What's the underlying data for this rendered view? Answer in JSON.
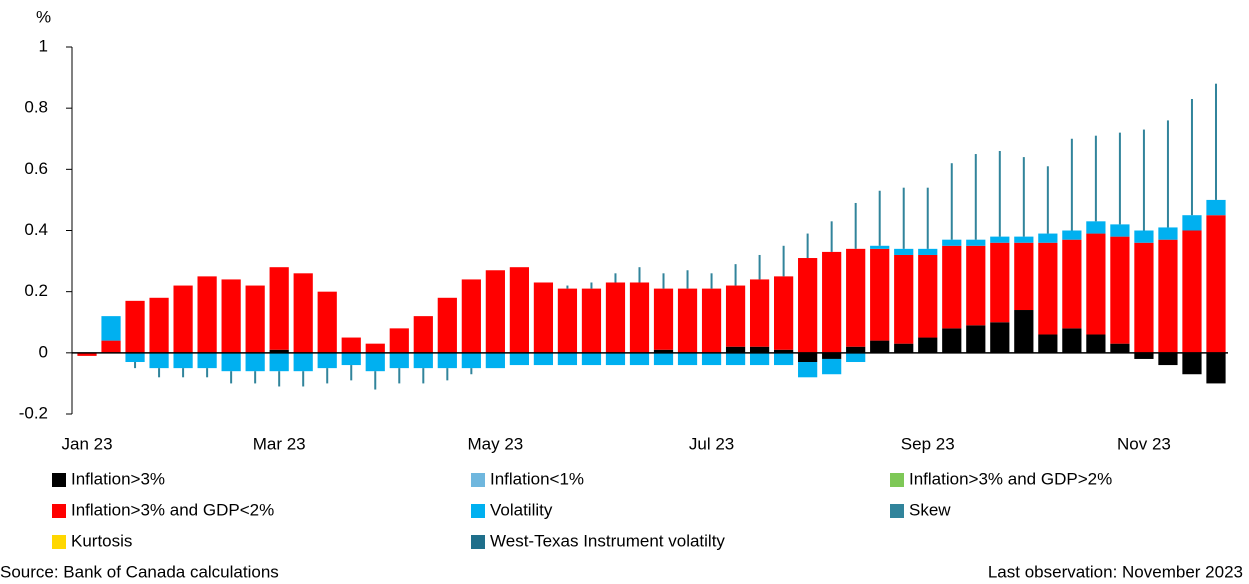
{
  "chart_data": {
    "type": "stacked_bar",
    "y_unit": "%",
    "source": "Source: Bank of Canada calculations",
    "note": "Last observation: November 2023",
    "categories": [
      "Jan 23",
      null,
      null,
      null,
      null,
      null,
      null,
      null,
      "Mar 23",
      null,
      null,
      null,
      null,
      null,
      null,
      null,
      null,
      "May 23",
      null,
      null,
      null,
      null,
      null,
      null,
      null,
      null,
      "Jul 23",
      null,
      null,
      null,
      null,
      null,
      null,
      null,
      null,
      "Sep 23",
      null,
      null,
      null,
      null,
      null,
      null,
      null,
      null,
      "Nov 23",
      null,
      null,
      null
    ],
    "ylim": [
      -0.2,
      1
    ],
    "yticks": [
      -0.2,
      0,
      0.2,
      0.4,
      0.6,
      0.8,
      1
    ],
    "series": [
      {
        "name": "Inflation>3%",
        "color": "#000000",
        "values": [
          0,
          0,
          0,
          0,
          0,
          0,
          0,
          0,
          0.01,
          0,
          0,
          0,
          0,
          0,
          0,
          0,
          0,
          0,
          0,
          0,
          0,
          0,
          0,
          0,
          0.01,
          0,
          0,
          0.02,
          0.02,
          0.01,
          -0.03,
          -0.02,
          0.02,
          0.04,
          0.03,
          0.05,
          0.08,
          0.09,
          0.1,
          0.14,
          0.06,
          0.08,
          0.06,
          0.03,
          -0.02,
          -0.04,
          -0.07,
          -0.1
        ]
      },
      {
        "name": "Inflation<1%",
        "color": "#6fb7de",
        "values": [
          0,
          0,
          0,
          0,
          0,
          0,
          0,
          0,
          0,
          0,
          0,
          0,
          0,
          0,
          0,
          0,
          0,
          0,
          0,
          0,
          0,
          0,
          0,
          0,
          0,
          0,
          0,
          0,
          0,
          0,
          0,
          0,
          0,
          0,
          0,
          0,
          0,
          0,
          0,
          0,
          0,
          0,
          0,
          0,
          0,
          0,
          0,
          0
        ]
      },
      {
        "name": "Inflation>3% and GDP>2%",
        "color": "#7ec857",
        "values": [
          0,
          0,
          0,
          0,
          0,
          0,
          0,
          0,
          0,
          0,
          0,
          0,
          0,
          0,
          0,
          0,
          0,
          0,
          0,
          0,
          0,
          0,
          0,
          0,
          0,
          0,
          0,
          0,
          0,
          0,
          0,
          0,
          0,
          0,
          0,
          0,
          0,
          0,
          0,
          0,
          0,
          0,
          0,
          0,
          0,
          0,
          0,
          0
        ]
      },
      {
        "name": "Inflation>3% and GDP<2%",
        "color": "#ff0000",
        "values": [
          -0.01,
          0.04,
          0.17,
          0.18,
          0.22,
          0.25,
          0.24,
          0.22,
          0.27,
          0.26,
          0.2,
          0.05,
          0.03,
          0.08,
          0.12,
          0.18,
          0.24,
          0.27,
          0.28,
          0.23,
          0.21,
          0.21,
          0.23,
          0.23,
          0.2,
          0.21,
          0.21,
          0.2,
          0.22,
          0.24,
          0.31,
          0.33,
          0.32,
          0.3,
          0.29,
          0.27,
          0.27,
          0.26,
          0.26,
          0.22,
          0.3,
          0.29,
          0.33,
          0.35,
          0.36,
          0.37,
          0.4,
          0.45
        ]
      },
      {
        "name": "Volatility",
        "color": "#00b0f0",
        "values": [
          0,
          0.08,
          -0.03,
          -0.05,
          -0.05,
          -0.05,
          -0.06,
          -0.06,
          -0.06,
          -0.06,
          -0.05,
          -0.04,
          -0.06,
          -0.05,
          -0.05,
          -0.05,
          -0.05,
          -0.05,
          -0.04,
          -0.04,
          -0.04,
          -0.04,
          -0.04,
          -0.04,
          -0.04,
          -0.04,
          -0.04,
          -0.04,
          -0.04,
          -0.04,
          -0.05,
          -0.05,
          -0.03,
          0.01,
          0.02,
          0.02,
          0.02,
          0.02,
          0.02,
          0.02,
          0.03,
          0.03,
          0.04,
          0.04,
          0.04,
          0.04,
          0.05,
          0.05
        ]
      },
      {
        "name": "Skew",
        "color": "#31849b",
        "values": [
          0,
          0,
          -0.02,
          -0.03,
          -0.03,
          -0.03,
          -0.04,
          -0.04,
          -0.05,
          -0.05,
          -0.05,
          -0.05,
          -0.06,
          -0.05,
          -0.05,
          -0.04,
          -0.02,
          0,
          0,
          0,
          0.01,
          0.02,
          0.03,
          0.05,
          0.05,
          0.06,
          0.05,
          0.07,
          0.08,
          0.1,
          0.08,
          0.1,
          0.15,
          0.18,
          0.2,
          0.2,
          0.25,
          0.28,
          0.28,
          0.26,
          0.22,
          0.3,
          0.28,
          0.3,
          0.33,
          0.35,
          0.38,
          0.38
        ]
      },
      {
        "name": "Kurtosis",
        "color": "#ffd700",
        "values": [
          0,
          0,
          0,
          0,
          0,
          0,
          0,
          0,
          0,
          0,
          0,
          0,
          0,
          0,
          0,
          0,
          0,
          0,
          0,
          0,
          0,
          0,
          0,
          0,
          0,
          0,
          0,
          0,
          0,
          0,
          0,
          0,
          0,
          0,
          0,
          0,
          0,
          0,
          0,
          0,
          0,
          0,
          0,
          0,
          0,
          0,
          0,
          0
        ]
      },
      {
        "name": "West-Texas Instrument volatilty",
        "color": "#1f6f8b",
        "values": [
          0,
          0,
          0,
          0,
          0,
          0,
          0,
          0,
          0,
          0,
          0,
          0,
          0,
          0,
          0,
          0,
          0,
          0,
          0,
          0,
          0,
          0,
          0,
          0,
          0,
          0,
          0,
          0,
          0,
          0,
          0,
          0,
          0,
          0,
          0,
          0,
          0,
          0,
          0,
          0,
          0,
          0,
          0,
          0,
          0,
          0,
          0,
          0
        ]
      }
    ]
  }
}
